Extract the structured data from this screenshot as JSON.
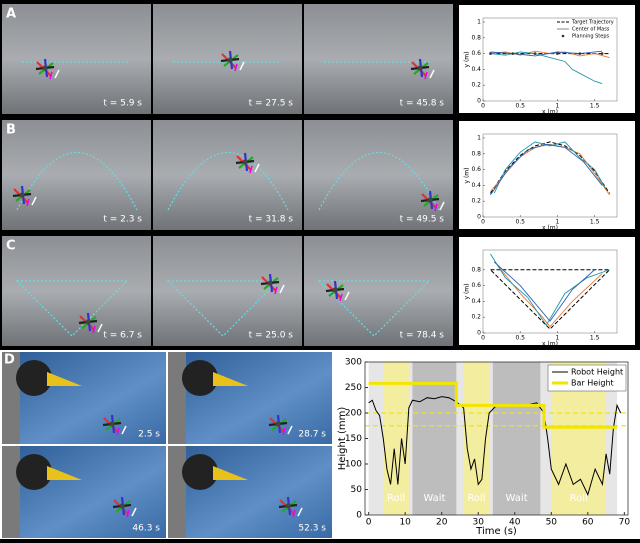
{
  "panels": [
    {
      "letter": "A",
      "photo_labels": [
        "t = 5.9 s",
        "t = 27.5 s",
        "t = 45.8 s"
      ]
    },
    {
      "letter": "B",
      "photo_labels": [
        "t = 2.3 s",
        "t = 31.8 s",
        "t = 49.5 s"
      ]
    },
    {
      "letter": "C",
      "photo_labels": [
        "t = 6.7 s",
        "t = 25.0 s",
        "t = 78.4 s"
      ]
    },
    {
      "letter": "D",
      "photo_labels": [
        "2.5 s",
        "28.7 s",
        "46.3 s",
        "52.3 s"
      ]
    }
  ],
  "chart_data": [
    {
      "type": "line",
      "xlabel": "x (m)",
      "ylabel": "y (m)",
      "xlim": [
        0,
        1.8
      ],
      "ylim": [
        0,
        1.05
      ],
      "xticks": [
        0,
        0.5,
        1,
        1.5
      ],
      "yticks": [
        0,
        0.2,
        0.4,
        0.6,
        0.8,
        1
      ],
      "legend": [
        "Target Trajectory",
        "Center of Mass",
        "Planning Steps"
      ],
      "series": [
        {
          "color": "#000000",
          "dash": true,
          "x": [
            0.1,
            1.7
          ],
          "values": [
            0.6,
            0.6
          ]
        },
        {
          "color": "#e8772e",
          "x": [
            0.1,
            0.3,
            0.5,
            0.7,
            0.9,
            1.1,
            1.3,
            1.5,
            1.7
          ],
          "values": [
            0.6,
            0.62,
            0.58,
            0.63,
            0.6,
            0.62,
            0.57,
            0.6,
            0.55
          ]
        },
        {
          "color": "#1f9aa8",
          "x": [
            0.1,
            0.3,
            0.5,
            0.7,
            0.9,
            1.1,
            1.2,
            1.3,
            1.5,
            1.6
          ],
          "values": [
            0.6,
            0.58,
            0.62,
            0.6,
            0.55,
            0.5,
            0.4,
            0.35,
            0.25,
            0.22
          ]
        },
        {
          "color": "#2b5fb4",
          "x": [
            0.1,
            0.4,
            0.7,
            1.0,
            1.3,
            1.6
          ],
          "values": [
            0.62,
            0.6,
            0.57,
            0.62,
            0.6,
            0.63
          ]
        }
      ],
      "steps": {
        "x": [
          0.1,
          0.4,
          0.7,
          1.0,
          1.3,
          1.6
        ],
        "values": [
          0.6,
          0.6,
          0.6,
          0.6,
          0.6,
          0.6
        ]
      }
    },
    {
      "type": "line",
      "xlabel": "x (m)",
      "ylabel": "y (m)",
      "xlim": [
        0,
        1.8
      ],
      "ylim": [
        0,
        1.05
      ],
      "xticks": [
        0,
        0.5,
        1,
        1.5
      ],
      "yticks": [
        0,
        0.2,
        0.4,
        0.6,
        0.8,
        1
      ],
      "series": [
        {
          "color": "#000000",
          "dash": true,
          "x": [
            0.1,
            0.3,
            0.5,
            0.7,
            0.9,
            1.1,
            1.3,
            1.5,
            1.7
          ],
          "values": [
            0.3,
            0.58,
            0.78,
            0.9,
            0.95,
            0.9,
            0.78,
            0.58,
            0.3
          ]
        },
        {
          "color": "#e8772e",
          "x": [
            0.1,
            0.3,
            0.5,
            0.7,
            0.9,
            1.1,
            1.3,
            1.5,
            1.7
          ],
          "values": [
            0.32,
            0.55,
            0.76,
            0.88,
            0.92,
            0.88,
            0.8,
            0.55,
            0.28
          ]
        },
        {
          "color": "#1f9aa8",
          "x": [
            0.15,
            0.3,
            0.5,
            0.7,
            0.9,
            1.1,
            1.3,
            1.5,
            1.65
          ],
          "values": [
            0.3,
            0.6,
            0.82,
            0.95,
            0.9,
            0.95,
            0.75,
            0.6,
            0.35
          ]
        },
        {
          "color": "#2b5fb4",
          "x": [
            0.1,
            0.35,
            0.6,
            0.85,
            1.1,
            1.35,
            1.6
          ],
          "values": [
            0.28,
            0.62,
            0.85,
            0.92,
            0.88,
            0.7,
            0.4
          ]
        }
      ]
    },
    {
      "type": "line",
      "xlabel": "x (m)",
      "ylabel": "y (m)",
      "xlim": [
        0,
        1.8
      ],
      "ylim": [
        0,
        1.05
      ],
      "xticks": [
        0,
        0.5,
        1,
        1.5
      ],
      "yticks": [
        0,
        0.2,
        0.4,
        0.6,
        0.8
      ],
      "series": [
        {
          "color": "#000000",
          "dash": true,
          "x": [
            0.1,
            1.7,
            0.9,
            0.1
          ],
          "values": [
            0.8,
            0.8,
            0.05,
            0.8
          ]
        },
        {
          "color": "#e8772e",
          "x": [
            0.2,
            0.5,
            0.8,
            0.9,
            1.2,
            1.6
          ],
          "values": [
            0.85,
            0.5,
            0.2,
            0.08,
            0.4,
            0.75
          ]
        },
        {
          "color": "#1f9aa8",
          "x": [
            0.1,
            0.3,
            0.6,
            0.85,
            1.1,
            1.4,
            1.7
          ],
          "values": [
            1.0,
            0.7,
            0.45,
            0.1,
            0.5,
            0.7,
            0.8
          ]
        },
        {
          "color": "#2b5fb4",
          "x": [
            0.15,
            0.5,
            0.9,
            1.2,
            1.5
          ],
          "values": [
            0.9,
            0.6,
            0.15,
            0.55,
            0.8
          ]
        }
      ]
    },
    {
      "type": "line",
      "xlabel": "Time (s)",
      "ylabel": "Height (mm)",
      "xlim": [
        -1,
        71
      ],
      "ylim": [
        0,
        300
      ],
      "xticks": [
        0,
        10,
        20,
        30,
        40,
        50,
        60,
        70
      ],
      "yticks": [
        0,
        50,
        100,
        150,
        200,
        250,
        300
      ],
      "regions": [
        {
          "start": 0,
          "end": 68,
          "color": "#e6e6e6"
        },
        {
          "label": "Roll",
          "start": 4,
          "end": 11,
          "color": "#f3eda0"
        },
        {
          "label": "Wait",
          "start": 12,
          "end": 24,
          "color": "#bdbdbd"
        },
        {
          "label": "Roll",
          "start": 26,
          "end": 33,
          "color": "#f3eda0"
        },
        {
          "label": "Wait",
          "start": 34,
          "end": 47,
          "color": "#bdbdbd"
        },
        {
          "label": "Roll",
          "start": 50,
          "end": 65,
          "color": "#f3eda0"
        }
      ],
      "reference_lines": [
        200,
        175
      ],
      "series": [
        {
          "name": "Robot Height",
          "color": "#000000",
          "x": [
            0,
            1,
            2,
            3,
            4,
            5,
            6,
            7,
            8,
            9,
            10,
            11,
            12,
            14,
            16,
            18,
            20,
            22,
            24,
            26,
            27,
            28,
            29,
            30,
            31,
            32,
            33,
            35,
            37,
            40,
            43,
            46,
            48,
            49,
            50,
            52,
            54,
            56,
            58,
            60,
            62,
            64,
            65,
            66,
            67,
            68,
            69
          ],
          "values": [
            220,
            225,
            205,
            195,
            150,
            90,
            60,
            130,
            60,
            150,
            100,
            210,
            225,
            222,
            230,
            228,
            232,
            230,
            222,
            210,
            130,
            90,
            110,
            60,
            70,
            150,
            200,
            215,
            215,
            217,
            215,
            220,
            200,
            150,
            90,
            60,
            100,
            60,
            70,
            40,
            90,
            60,
            120,
            80,
            170,
            215,
            200
          ]
        },
        {
          "name": "Bar Height",
          "color": "#f2e600",
          "x": [
            0,
            24,
            24,
            48,
            48,
            68
          ],
          "values": [
            258,
            258,
            215,
            215,
            172,
            172
          ]
        }
      ]
    }
  ]
}
